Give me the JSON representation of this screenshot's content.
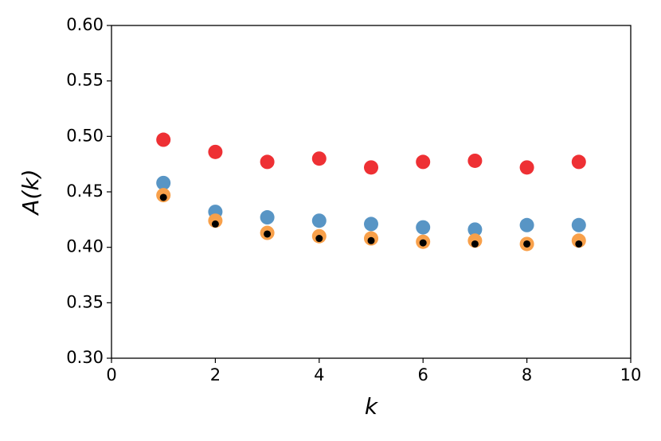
{
  "chart_data": {
    "type": "scatter",
    "xlabel": "k",
    "ylabel": "A(k)",
    "x": [
      1,
      2,
      3,
      4,
      5,
      6,
      7,
      8,
      9
    ],
    "series": [
      {
        "color": "#ee3034",
        "values": [
          0.497,
          0.486,
          0.477,
          0.48,
          0.472,
          0.477,
          0.478,
          0.472,
          0.477
        ]
      },
      {
        "color": "#5895c5",
        "values": [
          0.458,
          0.432,
          0.427,
          0.424,
          0.421,
          0.418,
          0.416,
          0.42,
          0.42
        ]
      },
      {
        "color": "#f8a04a",
        "values": [
          0.447,
          0.424,
          0.413,
          0.41,
          0.408,
          0.405,
          0.406,
          0.403,
          0.406
        ]
      },
      {
        "color": "#000000",
        "values": [
          0.445,
          0.421,
          0.412,
          0.408,
          0.406,
          0.404,
          0.403,
          0.403,
          0.403
        ]
      }
    ],
    "xlim": [
      0,
      10
    ],
    "xticks": [
      0,
      2,
      4,
      6,
      8,
      10
    ],
    "ylim": [
      0.3,
      0.6
    ],
    "yticks": [
      {
        "value": 0.3,
        "label": "0.30"
      },
      0.35,
      {
        "value": 0.4,
        "label": "0.40"
      },
      0.45,
      {
        "value": 0.5,
        "label": "0.50"
      },
      0.55,
      {
        "value": 0.6,
        "label": "0.60"
      }
    ],
    "grid": false
  }
}
